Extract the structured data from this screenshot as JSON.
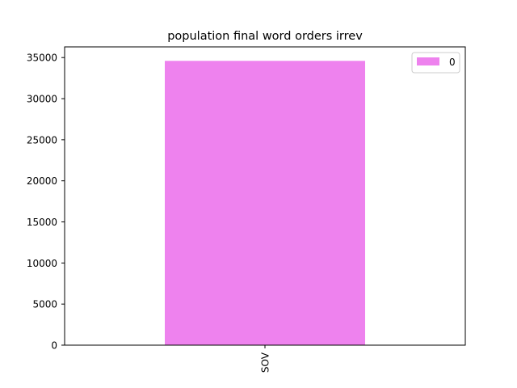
{
  "chart_data": {
    "type": "bar",
    "title": "population final word orders irrev",
    "xlabel": "",
    "ylabel": "",
    "categories": [
      "SOV"
    ],
    "series": [
      {
        "name": "0",
        "values": [
          34600
        ],
        "color": "#ee82ee"
      }
    ],
    "ylim": [
      0,
      36300
    ],
    "yticks": [
      0,
      5000,
      10000,
      15000,
      20000,
      25000,
      30000,
      35000
    ],
    "grid": false,
    "legend_position": "top-right"
  }
}
